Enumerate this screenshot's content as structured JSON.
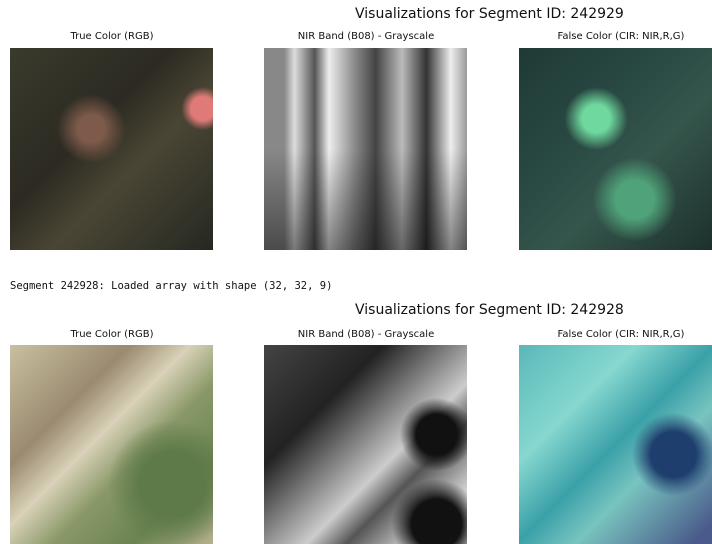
{
  "outputs": [
    {
      "title": "Visualizations for Segment ID: 242929",
      "panels": [
        "True Color (RGB)",
        "NIR Band (B08) - Grayscale",
        "False Color (CIR: NIR,R,G)"
      ]
    },
    {
      "log": "Segment 242928: Loaded array with shape (32, 32, 9)"
    },
    {
      "title": "Visualizations for Segment ID: 242928",
      "panels": [
        "True Color (RGB)",
        "NIR Band (B08) - Grayscale",
        "False Color (CIR: NIR,R,G)"
      ]
    }
  ]
}
